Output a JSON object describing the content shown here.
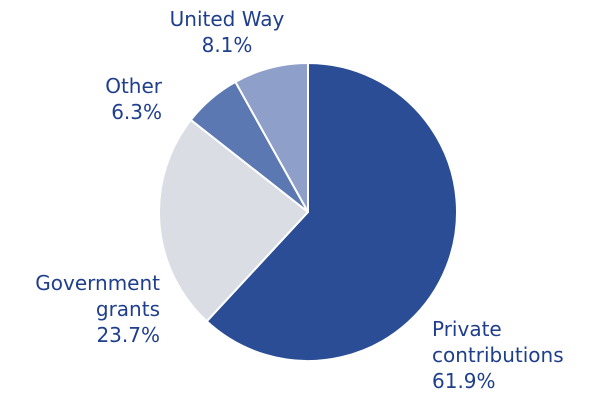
{
  "chart_data": {
    "type": "pie",
    "title": "",
    "slices": [
      {
        "name": "Private contributions",
        "label_lines": [
          "Private",
          "contributions"
        ],
        "value": 61.9,
        "value_label": "61.9%",
        "color": "#2b4d95"
      },
      {
        "name": "Government grants",
        "label_lines": [
          "Government",
          "grants"
        ],
        "value": 23.7,
        "value_label": "23.7%",
        "color": "#dadde4"
      },
      {
        "name": "Other",
        "label_lines": [
          "Other"
        ],
        "value": 6.3,
        "value_label": "6.3%",
        "color": "#5b78b3"
      },
      {
        "name": "United Way",
        "label_lines": [
          "United Way"
        ],
        "value": 8.1,
        "value_label": "8.1%",
        "color": "#8ea0c9"
      }
    ],
    "start_angle_deg": 0,
    "direction": "clockwise",
    "legend": "none"
  }
}
